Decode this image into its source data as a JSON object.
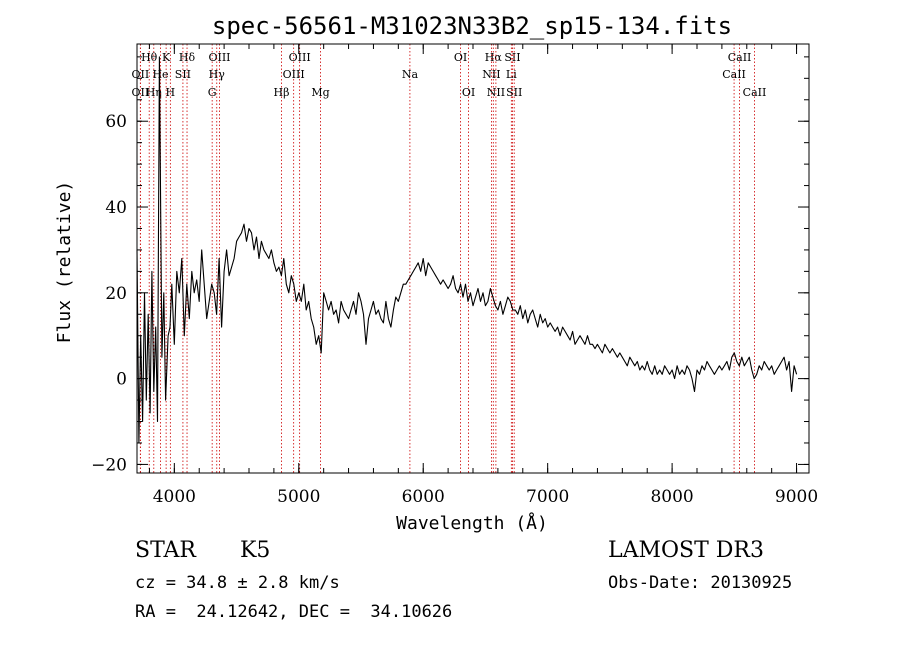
{
  "chart_data": {
    "type": "line",
    "title": "spec-56561-M31023N33B2_sp15-134.fits",
    "xlabel": "Wavelength (Å)",
    "ylabel": "Flux (relative)",
    "xlim": [
      3700,
      9100
    ],
    "ylim": [
      -22,
      78
    ],
    "xticks": [
      4000,
      5000,
      6000,
      7000,
      8000,
      9000
    ],
    "xtick_labels": [
      "4000",
      "5000",
      "6000",
      "7000",
      "8000",
      "9000"
    ],
    "yticks": [
      -20,
      0,
      20,
      40,
      60
    ],
    "ytick_labels": [
      "−20",
      "0",
      "20",
      "40",
      "60"
    ],
    "x_minor_step": 200,
    "y_minor_step": 5,
    "grid": false,
    "line_color": "#000000",
    "marker_color": "#cc0000",
    "series": [
      {
        "name": "flux",
        "x": [
          3700,
          3715,
          3730,
          3745,
          3760,
          3775,
          3790,
          3805,
          3820,
          3835,
          3850,
          3865,
          3880,
          3900,
          3915,
          3930,
          3950,
          3965,
          3980,
          4000,
          4020,
          4040,
          4060,
          4080,
          4100,
          4120,
          4140,
          4160,
          4180,
          4200,
          4220,
          4240,
          4260,
          4280,
          4300,
          4320,
          4340,
          4360,
          4380,
          4400,
          4420,
          4440,
          4460,
          4480,
          4500,
          4520,
          4540,
          4560,
          4580,
          4600,
          4620,
          4640,
          4660,
          4680,
          4700,
          4720,
          4740,
          4760,
          4780,
          4800,
          4820,
          4840,
          4860,
          4880,
          4900,
          4920,
          4940,
          4960,
          4980,
          5000,
          5020,
          5040,
          5060,
          5080,
          5100,
          5120,
          5140,
          5160,
          5180,
          5200,
          5220,
          5240,
          5260,
          5280,
          5300,
          5320,
          5340,
          5360,
          5380,
          5400,
          5420,
          5440,
          5460,
          5480,
          5500,
          5520,
          5540,
          5560,
          5580,
          5600,
          5620,
          5640,
          5660,
          5680,
          5700,
          5720,
          5740,
          5760,
          5780,
          5800,
          5820,
          5840,
          5860,
          5880,
          5900,
          5920,
          5940,
          5960,
          5980,
          6000,
          6020,
          6040,
          6060,
          6080,
          6100,
          6120,
          6140,
          6160,
          6180,
          6200,
          6220,
          6240,
          6260,
          6280,
          6300,
          6320,
          6340,
          6360,
          6380,
          6400,
          6420,
          6440,
          6460,
          6480,
          6500,
          6520,
          6540,
          6560,
          6580,
          6600,
          6620,
          6640,
          6660,
          6680,
          6700,
          6720,
          6740,
          6760,
          6780,
          6800,
          6820,
          6840,
          6860,
          6880,
          6900,
          6920,
          6940,
          6960,
          6980,
          7000,
          7020,
          7040,
          7060,
          7080,
          7100,
          7120,
          7140,
          7160,
          7180,
          7200,
          7220,
          7240,
          7260,
          7280,
          7300,
          7320,
          7340,
          7360,
          7380,
          7400,
          7420,
          7440,
          7460,
          7480,
          7500,
          7520,
          7540,
          7560,
          7580,
          7600,
          7620,
          7640,
          7660,
          7680,
          7700,
          7720,
          7740,
          7760,
          7780,
          7800,
          7820,
          7840,
          7860,
          7880,
          7900,
          7920,
          7940,
          7960,
          7980,
          8000,
          8020,
          8040,
          8060,
          8080,
          8100,
          8120,
          8140,
          8160,
          8180,
          8200,
          8220,
          8240,
          8260,
          8280,
          8300,
          8320,
          8340,
          8360,
          8380,
          8400,
          8420,
          8440,
          8460,
          8480,
          8500,
          8520,
          8540,
          8560,
          8580,
          8600,
          8620,
          8640,
          8660,
          8680,
          8700,
          8720,
          8740,
          8760,
          8780,
          8800,
          8820,
          8840,
          8860,
          8880,
          8900,
          8920,
          8940,
          8960,
          8980,
          9000
        ],
        "y": [
          30,
          -15,
          10,
          -10,
          20,
          -5,
          15,
          -8,
          25,
          -3,
          12,
          -10,
          75,
          5,
          20,
          -5,
          10,
          12,
          22,
          8,
          25,
          20,
          28,
          10,
          22,
          14,
          25,
          20,
          23,
          18,
          30,
          22,
          14,
          18,
          22,
          20,
          15,
          28,
          12,
          25,
          30,
          24,
          26,
          28,
          32,
          33,
          34,
          36,
          32,
          35,
          34,
          30,
          33,
          28,
          32,
          30,
          29,
          28,
          30,
          27,
          25,
          26,
          24,
          28,
          22,
          20,
          24,
          22,
          18,
          20,
          18,
          22,
          16,
          18,
          14,
          12,
          8,
          10,
          6,
          20,
          18,
          16,
          18,
          15,
          16,
          13,
          18,
          16,
          15,
          14,
          16,
          18,
          15,
          20,
          18,
          15,
          8,
          14,
          16,
          18,
          15,
          16,
          14,
          13,
          18,
          14,
          12,
          16,
          19,
          18,
          20,
          22,
          22,
          23,
          24,
          25,
          26,
          27,
          25,
          28,
          24,
          27,
          26,
          25,
          24,
          23,
          22,
          23,
          22,
          21,
          22,
          24,
          21,
          20,
          22,
          19,
          22,
          18,
          20,
          17,
          19,
          21,
          18,
          20,
          17,
          18,
          21,
          19,
          17,
          16,
          18,
          15,
          17,
          19,
          18,
          16,
          16,
          15,
          17,
          14,
          16,
          13,
          15,
          16,
          14,
          12,
          15,
          13,
          14,
          12,
          13,
          12,
          11,
          12,
          10,
          12,
          11,
          10,
          9,
          11,
          8,
          9,
          10,
          9,
          8,
          10,
          8,
          8,
          7,
          8,
          7,
          6,
          8,
          7,
          6,
          7,
          6,
          5,
          6,
          5,
          4,
          3,
          5,
          4,
          3,
          4,
          2,
          3,
          2,
          4,
          2,
          1,
          3,
          1,
          2,
          1,
          3,
          2,
          1,
          2,
          0,
          3,
          1,
          2,
          1,
          3,
          2,
          0,
          -3,
          2,
          1,
          3,
          2,
          4,
          3,
          2,
          1,
          2,
          3,
          2,
          3,
          4,
          2,
          5,
          6,
          4,
          3,
          5,
          3,
          4,
          5,
          2,
          0,
          1,
          3,
          2,
          4,
          3,
          2,
          3,
          1,
          2,
          3,
          4,
          5,
          2,
          4,
          -3,
          3,
          1
        ]
      }
    ],
    "line_markers": [
      {
        "label": "Hθ",
        "x": 3798,
        "row": 1
      },
      {
        "label": "OII",
        "x": 3727,
        "row": 2
      },
      {
        "label": "OII",
        "x": 3727,
        "row": 3
      },
      {
        "label": "Hη",
        "x": 3835,
        "row": 3
      },
      {
        "label": "K",
        "x": 3934,
        "row": 1
      },
      {
        "label": "He",
        "x": 3889,
        "row": 2
      },
      {
        "label": "H",
        "x": 3968,
        "row": 3
      },
      {
        "label": "Hδ",
        "x": 4102,
        "row": 1
      },
      {
        "label": "SII",
        "x": 4069,
        "row": 2
      },
      {
        "label": "OIII",
        "x": 4363,
        "row": 1
      },
      {
        "label": "Hγ",
        "x": 4341,
        "row": 2
      },
      {
        "label": "G",
        "x": 4304,
        "row": 3
      },
      {
        "label": "OIII",
        "x": 5007,
        "row": 1
      },
      {
        "label": "OIII",
        "x": 4959,
        "row": 2
      },
      {
        "label": "Hβ",
        "x": 4861,
        "row": 3
      },
      {
        "label": "Mg",
        "x": 5175,
        "row": 3
      },
      {
        "label": "Na",
        "x": 5893,
        "row": 2
      },
      {
        "label": "OI",
        "x": 6300,
        "row": 1
      },
      {
        "label": "OI",
        "x": 6364,
        "row": 3
      },
      {
        "label": "Hα",
        "x": 6563,
        "row": 1
      },
      {
        "label": "NII",
        "x": 6548,
        "row": 2
      },
      {
        "label": "NII",
        "x": 6584,
        "row": 3
      },
      {
        "label": "SII",
        "x": 6717,
        "row": 1
      },
      {
        "label": "Li",
        "x": 6708,
        "row": 2
      },
      {
        "label": "SII",
        "x": 6731,
        "row": 3
      },
      {
        "label": "CaII",
        "x": 8542,
        "row": 1
      },
      {
        "label": "CaII",
        "x": 8498,
        "row": 2
      },
      {
        "label": "CaII",
        "x": 8662,
        "row": 3
      }
    ]
  },
  "footer": {
    "object_class": "STAR",
    "subclass": "K5",
    "redshift": "cz = 34.8 ± 2.8 km/s",
    "coords": "RA =  24.12642, DEC =  34.10626",
    "survey": "LAMOST DR3",
    "obs_date": "Obs-Date: 20130925"
  }
}
